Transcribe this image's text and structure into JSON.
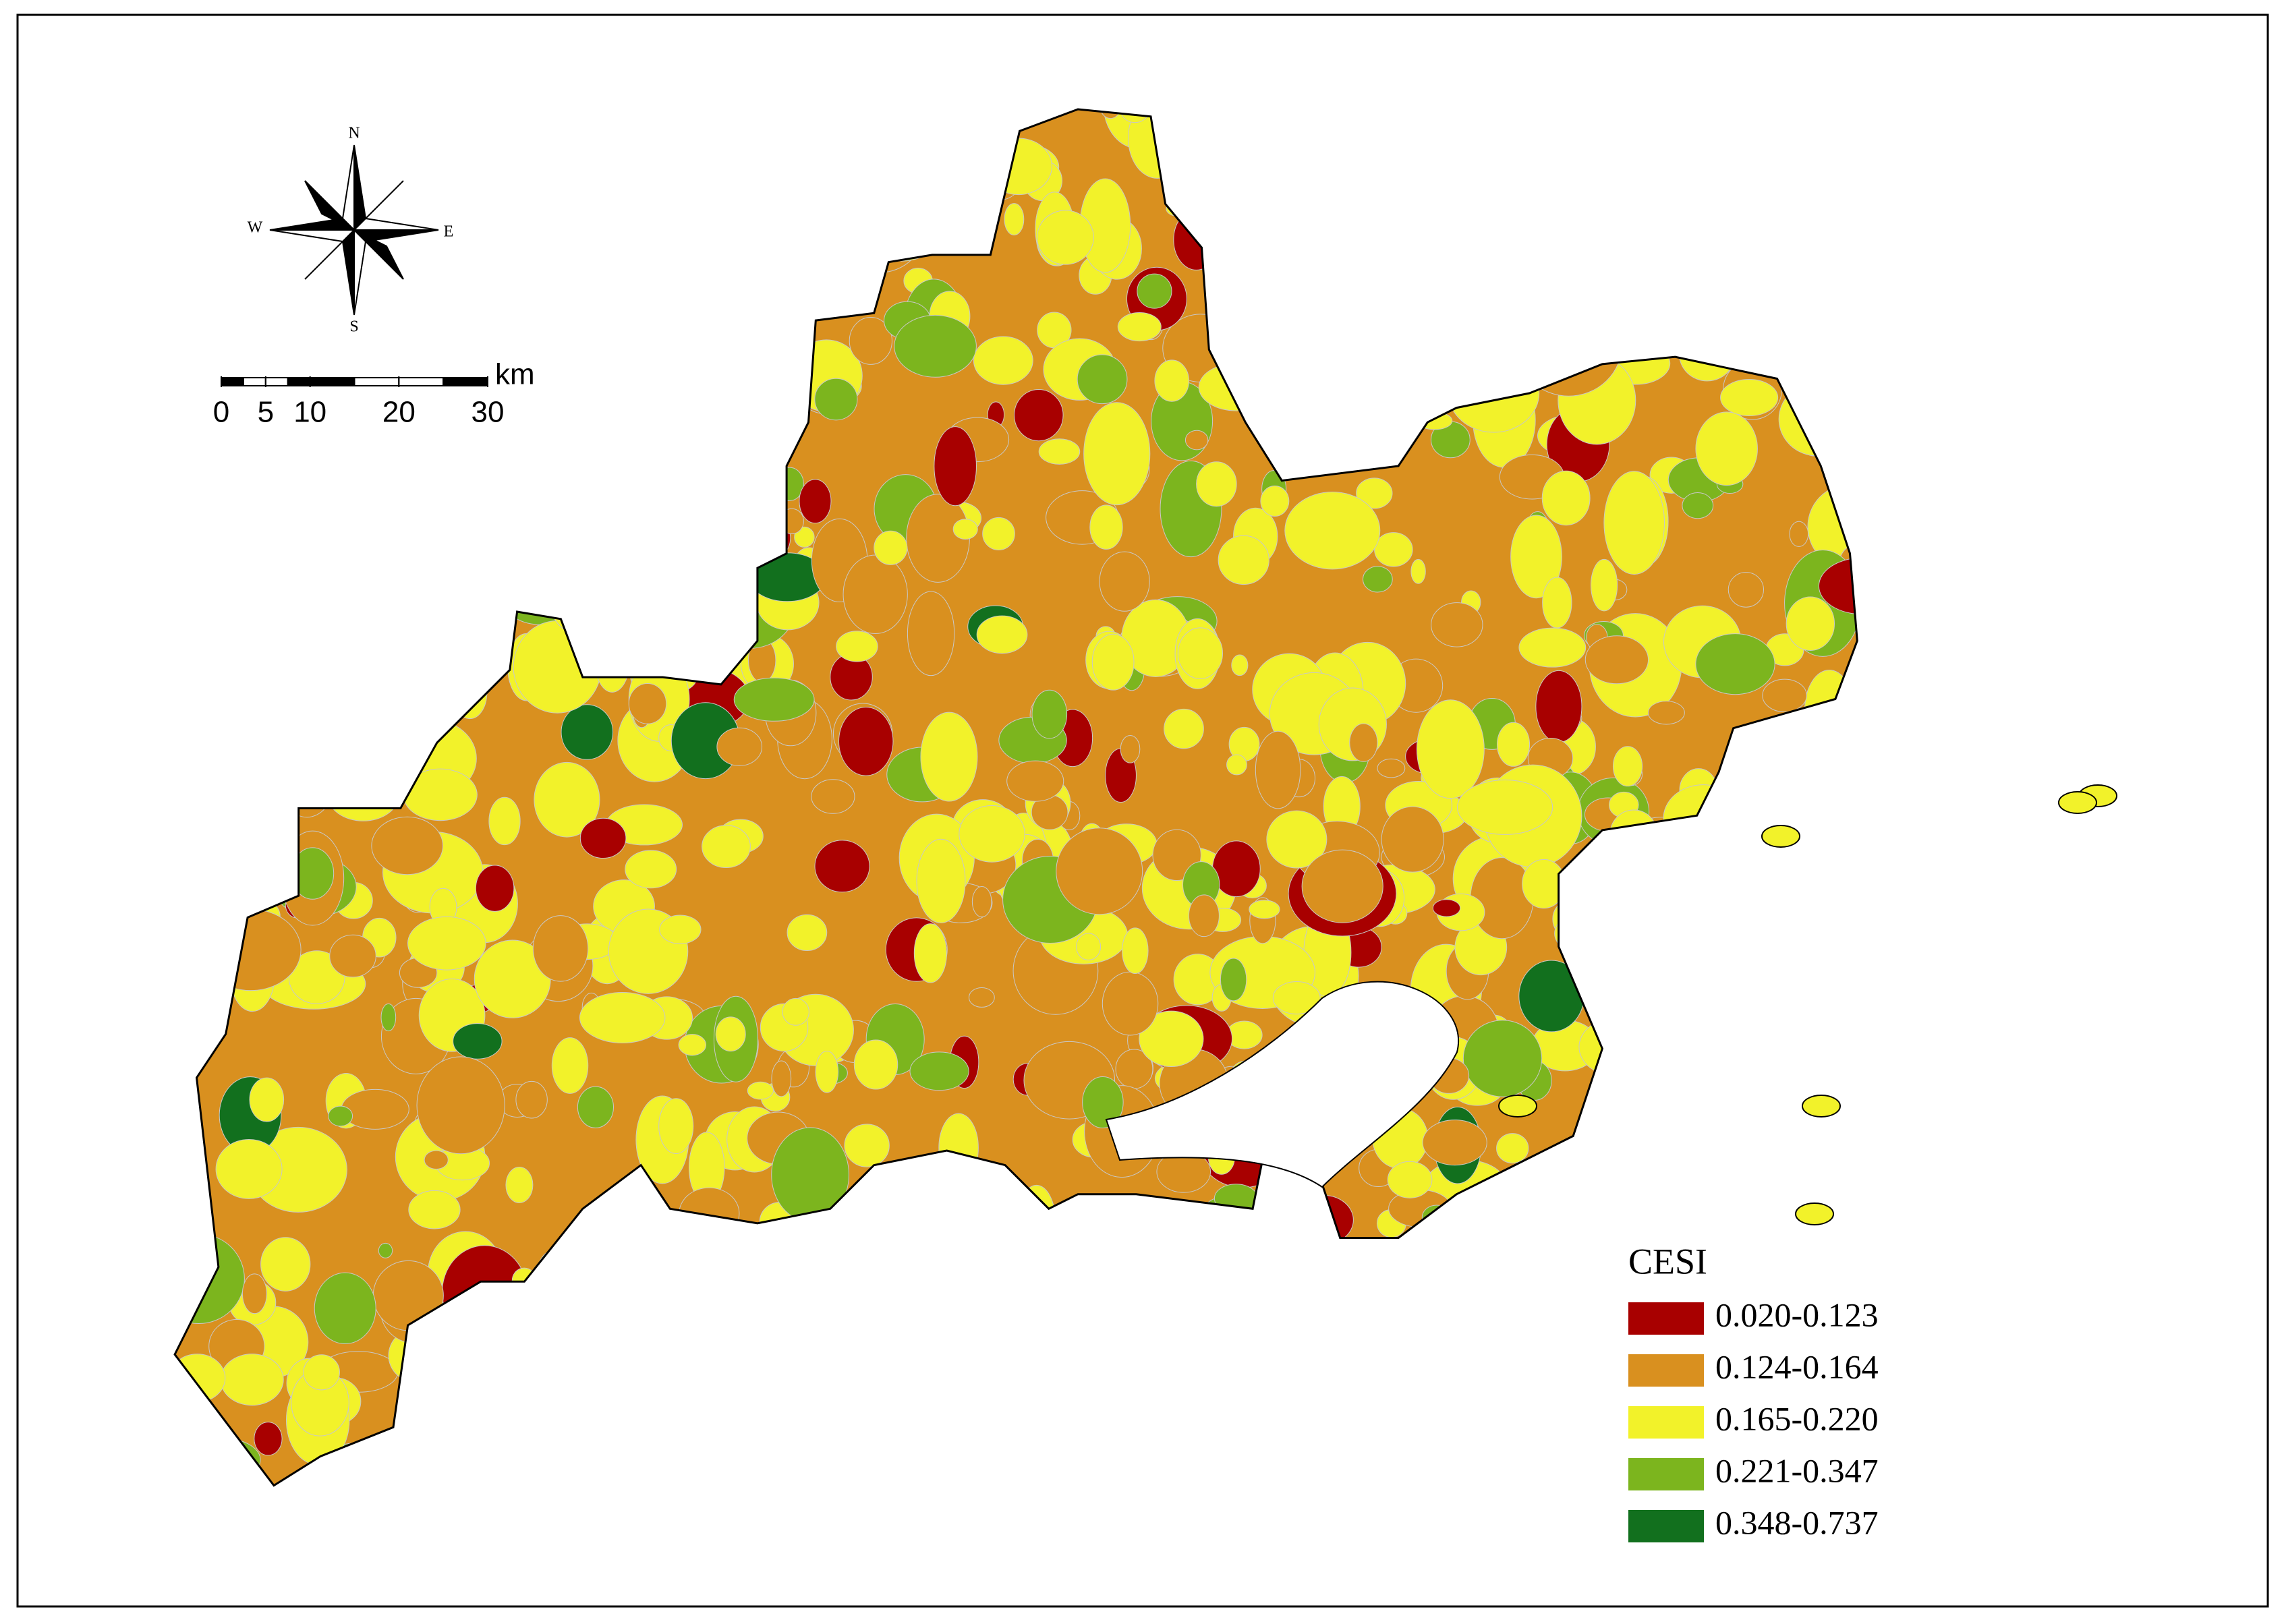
{
  "compass": {
    "north": "N",
    "east": "E",
    "south": "S",
    "west": "W"
  },
  "scale_bar": {
    "ticks": [
      0,
      5,
      10,
      20,
      30
    ],
    "unit": "km"
  },
  "legend": {
    "title": "CESI",
    "items": [
      {
        "label": "0.020-0.123",
        "color": "#a80000"
      },
      {
        "label": "0.124-0.164",
        "color": "#d9901f"
      },
      {
        "label": "0.165-0.220",
        "color": "#f2f22a"
      },
      {
        "label": "0.221-0.347",
        "color": "#7cb51e"
      },
      {
        "label": "0.348-0.737",
        "color": "#12701e"
      }
    ]
  }
}
